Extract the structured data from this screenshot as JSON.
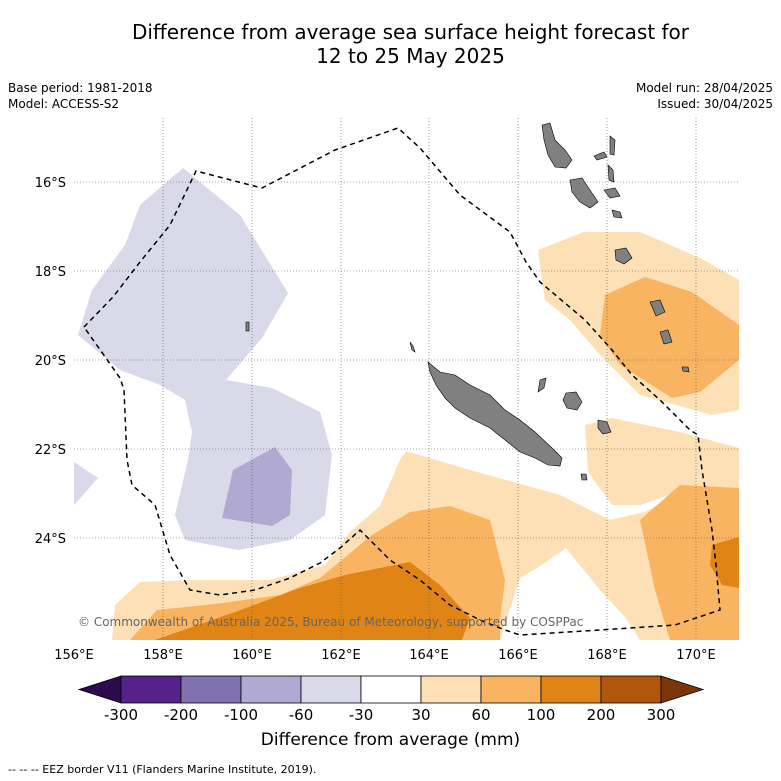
{
  "title_line1": "Difference from average sea surface height forecast for",
  "title_line2": "12 to 25 May 2025",
  "base_period": "Base period: 1981-2018",
  "model": "Model: ACCESS-S2",
  "model_run": "Model run: 28/04/2025",
  "issued": "Issued: 30/04/2025",
  "copyright": "© Commonwealth of Australia 2025, Bureau of Meteorology, supported by COSPPac",
  "lat_labels": [
    "16°S",
    "18°S",
    "20°S",
    "22°S",
    "24°S"
  ],
  "lon_labels": [
    "156°E",
    "158°E",
    "160°E",
    "162°E",
    "164°E",
    "166°E",
    "168°E",
    "170°E"
  ],
  "colorbar": {
    "ticks": [
      "-300",
      "-200",
      "-100",
      "-60",
      "-30",
      "30",
      "60",
      "100",
      "200",
      "300"
    ],
    "colors": [
      "#2d0a4e",
      "#542288",
      "#8072b0",
      "#b0a9d2",
      "#d9d9ea",
      "#ffffff",
      "#fde0b6",
      "#f8b461",
      "#e08416",
      "#b0560d",
      "#7a3508"
    ],
    "title": "Difference from average (mm)"
  },
  "footnote": "--  --  -- EEZ border V11 (Flanders Marine Institute, 2019)."
}
